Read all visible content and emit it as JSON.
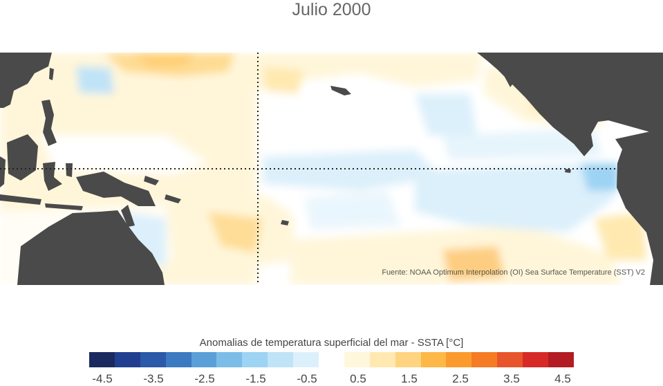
{
  "map": {
    "title": "Julio 2000",
    "source": "Fuente: NOAA Optimum Interpolation (OI) Sea Surface Temperature (SST) V2",
    "land_color": "#4a4a4a",
    "guide_lines": [
      "equator",
      "dateline"
    ]
  },
  "legend": {
    "title": "Anomalias de temperatura superficial del mar - SSTA  [°C]",
    "tick_labels": [
      "-4.5",
      "-3.5",
      "-2.5",
      "-1.5",
      "-0.5",
      "0.5",
      "1.5",
      "2.5",
      "3.5",
      "4.5"
    ],
    "colors": [
      "#1b2a5e",
      "#213f8f",
      "#2a5aa8",
      "#3c7bc2",
      "#5a9fd8",
      "#7cbde8",
      "#9dd3f3",
      "#bfe3f7",
      "#dcf0fb",
      "#ffffff",
      "#fff7dc",
      "#ffe9b0",
      "#fed480",
      "#fdb848",
      "#fb9b2e",
      "#f57b24",
      "#e8552a",
      "#d62a27",
      "#b21c22"
    ]
  }
}
